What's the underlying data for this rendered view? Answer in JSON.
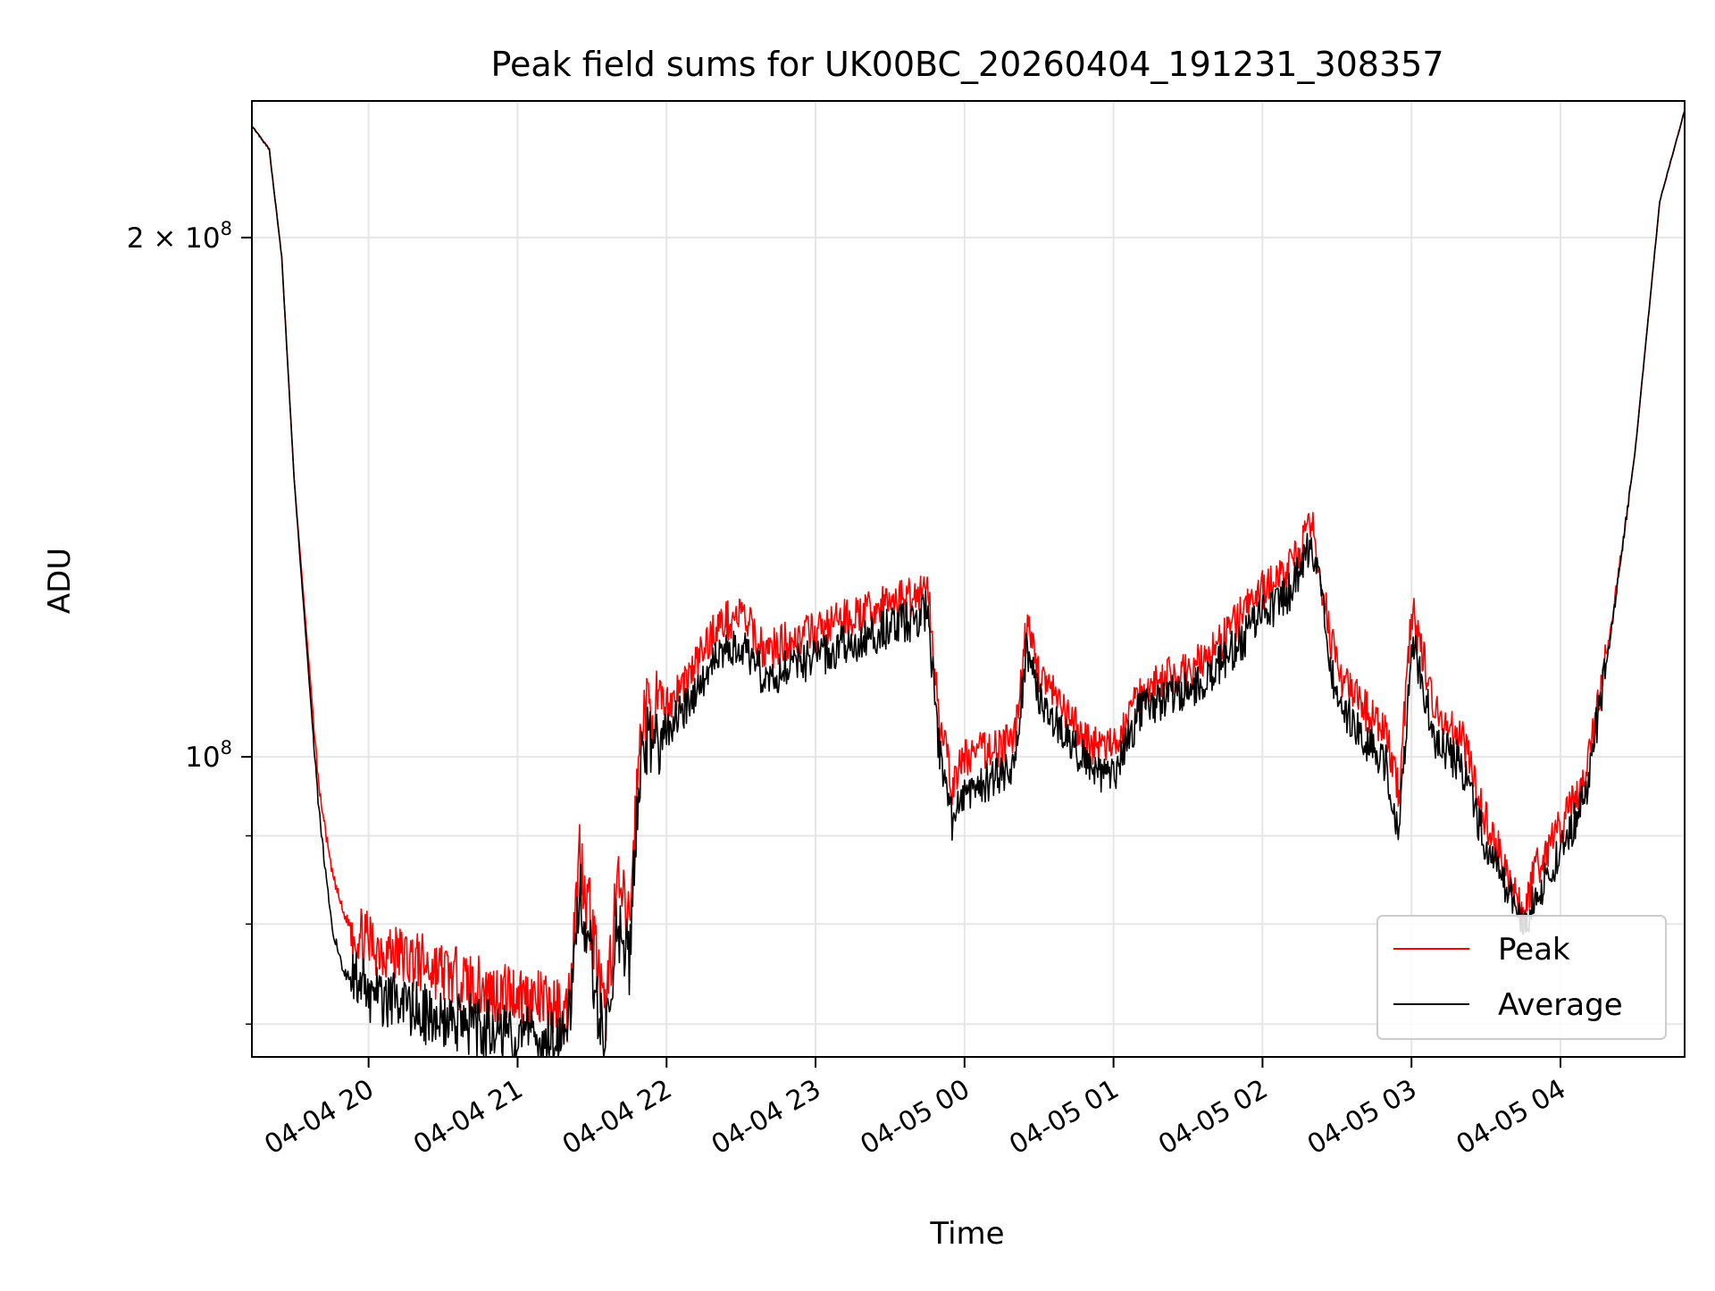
{
  "chart_data": {
    "type": "line",
    "title": "Peak field sums for UK00BC_20260404_191231_308357",
    "xlabel": "Time",
    "ylabel": "ADU",
    "yscale": "log",
    "ylim": [
      67000000,
      240000000
    ],
    "y_ticks": [
      {
        "value": 100000000,
        "label_base": "10",
        "label_exp": "8",
        "label_prefix": ""
      },
      {
        "value": 200000000,
        "label_base": "10",
        "label_exp": "8",
        "label_prefix": "2 × "
      }
    ],
    "y_minor_ticks": [
      70000000,
      80000000,
      90000000
    ],
    "x_range": [
      "2026-04-04 19:13",
      "2026-04-05 04:50"
    ],
    "x_ticks": [
      {
        "value": "2026-04-04 20:00",
        "label": "04-04 20"
      },
      {
        "value": "2026-04-04 21:00",
        "label": "04-04 21"
      },
      {
        "value": "2026-04-04 22:00",
        "label": "04-04 22"
      },
      {
        "value": "2026-04-04 23:00",
        "label": "04-04 23"
      },
      {
        "value": "2026-04-05 00:00",
        "label": "04-05 00"
      },
      {
        "value": "2026-04-05 01:00",
        "label": "04-05 01"
      },
      {
        "value": "2026-04-05 02:00",
        "label": "04-05 02"
      },
      {
        "value": "2026-04-05 03:00",
        "label": "04-05 03"
      },
      {
        "value": "2026-04-05 04:00",
        "label": "04-05 04"
      }
    ],
    "grid": true,
    "legend": "lower-right",
    "series": [
      {
        "name": "Peak",
        "color": "#ff0000",
        "x": [
          "2026-04-04 19:13",
          "2026-04-04 19:20",
          "2026-04-04 19:25",
          "2026-04-04 19:30",
          "2026-04-04 19:35",
          "2026-04-04 19:40",
          "2026-04-04 19:45",
          "2026-04-04 19:50",
          "2026-04-04 19:55",
          "2026-04-04 20:00",
          "2026-04-04 20:10",
          "2026-04-04 20:20",
          "2026-04-04 20:30",
          "2026-04-04 20:40",
          "2026-04-04 20:50",
          "2026-04-04 21:00",
          "2026-04-04 21:10",
          "2026-04-04 21:20",
          "2026-04-04 21:25",
          "2026-04-04 21:30",
          "2026-04-04 21:35",
          "2026-04-04 21:40",
          "2026-04-04 21:45",
          "2026-04-04 21:50",
          "2026-04-04 22:00",
          "2026-04-04 22:10",
          "2026-04-04 22:20",
          "2026-04-04 22:30",
          "2026-04-04 22:40",
          "2026-04-04 22:50",
          "2026-04-04 23:00",
          "2026-04-04 23:10",
          "2026-04-04 23:20",
          "2026-04-04 23:30",
          "2026-04-04 23:40",
          "2026-04-04 23:45",
          "2026-04-04 23:50",
          "2026-04-04 23:55",
          "2026-04-05 00:00",
          "2026-04-05 00:10",
          "2026-04-05 00:20",
          "2026-04-05 00:25",
          "2026-04-05 00:30",
          "2026-04-05 00:40",
          "2026-04-05 00:50",
          "2026-04-05 01:00",
          "2026-04-05 01:10",
          "2026-04-05 01:20",
          "2026-04-05 01:30",
          "2026-04-05 01:40",
          "2026-04-05 01:50",
          "2026-04-05 02:00",
          "2026-04-05 02:10",
          "2026-04-05 02:20",
          "2026-04-05 02:30",
          "2026-04-05 02:40",
          "2026-04-05 02:50",
          "2026-04-05 02:55",
          "2026-04-05 03:00",
          "2026-04-05 03:10",
          "2026-04-05 03:20",
          "2026-04-05 03:30",
          "2026-04-05 03:40",
          "2026-04-05 03:45",
          "2026-04-05 03:50",
          "2026-04-05 04:00",
          "2026-04-05 04:10",
          "2026-04-05 04:20",
          "2026-04-05 04:30",
          "2026-04-05 04:40",
          "2026-04-05 04:50"
        ],
        "y": [
          232000000,
          225000000,
          195000000,
          145000000,
          118000000,
          96000000,
          86000000,
          81000000,
          79000000,
          78000000,
          77000000,
          76000000,
          75000000,
          74000000,
          73000000,
          73000000,
          72000000,
          71000000,
          88000000,
          80000000,
          70000000,
          84000000,
          80000000,
          106000000,
          107000000,
          112000000,
          119000000,
          121000000,
          115000000,
          117000000,
          118000000,
          120000000,
          121000000,
          123000000,
          124000000,
          126000000,
          105000000,
          96000000,
          100000000,
          101000000,
          102000000,
          119000000,
          112000000,
          106000000,
          102000000,
          101000000,
          109000000,
          111000000,
          112000000,
          115000000,
          120000000,
          125000000,
          128000000,
          136000000,
          112000000,
          107000000,
          103000000,
          95000000,
          122000000,
          106000000,
          103000000,
          92000000,
          85000000,
          81000000,
          86000000,
          91000000,
          97000000,
          118000000,
          150000000,
          210000000,
          237000000
        ]
      },
      {
        "name": "Average",
        "color": "#000000",
        "x": [
          "2026-04-04 19:13",
          "2026-04-04 19:20",
          "2026-04-04 19:25",
          "2026-04-04 19:30",
          "2026-04-04 19:35",
          "2026-04-04 19:40",
          "2026-04-04 19:45",
          "2026-04-04 19:50",
          "2026-04-04 19:55",
          "2026-04-04 20:00",
          "2026-04-04 20:10",
          "2026-04-04 20:20",
          "2026-04-04 20:30",
          "2026-04-04 20:40",
          "2026-04-04 20:50",
          "2026-04-04 21:00",
          "2026-04-04 21:10",
          "2026-04-04 21:20",
          "2026-04-04 21:25",
          "2026-04-04 21:30",
          "2026-04-04 21:35",
          "2026-04-04 21:40",
          "2026-04-04 21:45",
          "2026-04-04 21:50",
          "2026-04-04 22:00",
          "2026-04-04 22:10",
          "2026-04-04 22:20",
          "2026-04-04 22:30",
          "2026-04-04 22:40",
          "2026-04-04 22:50",
          "2026-04-04 23:00",
          "2026-04-04 23:10",
          "2026-04-04 23:20",
          "2026-04-04 23:30",
          "2026-04-04 23:40",
          "2026-04-04 23:45",
          "2026-04-04 23:50",
          "2026-04-04 23:55",
          "2026-04-05 00:00",
          "2026-04-05 00:10",
          "2026-04-05 00:20",
          "2026-04-05 00:25",
          "2026-04-05 00:30",
          "2026-04-05 00:40",
          "2026-04-05 00:50",
          "2026-04-05 01:00",
          "2026-04-05 01:10",
          "2026-04-05 01:20",
          "2026-04-05 01:30",
          "2026-04-05 01:40",
          "2026-04-05 01:50",
          "2026-04-05 02:00",
          "2026-04-05 02:10",
          "2026-04-05 02:20",
          "2026-04-05 02:30",
          "2026-04-05 02:40",
          "2026-04-05 02:50",
          "2026-04-05 02:55",
          "2026-04-05 03:00",
          "2026-04-05 03:10",
          "2026-04-05 03:20",
          "2026-04-05 03:30",
          "2026-04-05 03:40",
          "2026-04-05 03:45",
          "2026-04-05 03:50",
          "2026-04-05 04:00",
          "2026-04-05 04:10",
          "2026-04-05 04:20",
          "2026-04-05 04:30",
          "2026-04-05 04:40",
          "2026-04-05 04:50"
        ],
        "y": [
          232000000,
          225000000,
          195000000,
          145000000,
          116000000,
          93000000,
          80000000,
          75000000,
          74000000,
          73000000,
          72000000,
          71000000,
          70500000,
          70000000,
          69500000,
          69000000,
          68500000,
          68500000,
          84000000,
          76000000,
          68000000,
          80000000,
          76000000,
          102000000,
          103000000,
          108000000,
          114000000,
          116000000,
          111000000,
          113000000,
          114000000,
          116000000,
          117000000,
          119000000,
          120000000,
          122000000,
          100000000,
          92000000,
          95000000,
          97000000,
          98000000,
          116000000,
          108000000,
          103000000,
          99000000,
          97000000,
          106000000,
          108000000,
          109000000,
          112000000,
          116000000,
          121000000,
          124000000,
          133000000,
          108000000,
          103000000,
          99000000,
          90000000,
          117000000,
          102000000,
          99000000,
          89000000,
          83000000,
          79000000,
          83000000,
          88000000,
          95000000,
          117000000,
          150000000,
          210000000,
          237000000
        ]
      }
    ]
  }
}
